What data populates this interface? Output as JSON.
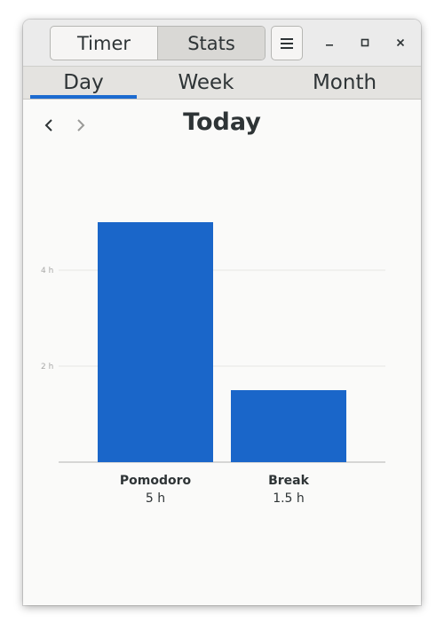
{
  "header": {
    "switcher": [
      {
        "label": "Timer",
        "active": false
      },
      {
        "label": "Stats",
        "active": true
      }
    ],
    "menu_icon": "hamburger-menu-icon",
    "window_controls": [
      "minimize-icon",
      "maximize-icon",
      "close-icon"
    ]
  },
  "tabs": [
    {
      "label": "Day",
      "active": true
    },
    {
      "label": "Week",
      "active": false
    },
    {
      "label": "Month",
      "active": false
    }
  ],
  "nav": {
    "title": "Today",
    "prev_icon": "chevron-left-icon",
    "next_icon": "chevron-right-icon",
    "next_enabled": false
  },
  "colors": {
    "accent": "#1c6bd0",
    "bar": "#1a66c9"
  },
  "chart_data": {
    "type": "bar",
    "categories": [
      "Pomodoro",
      "Break"
    ],
    "values": [
      5,
      1.5
    ],
    "value_labels": [
      "5 h",
      "1.5 h"
    ],
    "y_ticks": [
      {
        "value": 2,
        "label": "2 h"
      },
      {
        "value": 4,
        "label": "4 h"
      }
    ],
    "ylim": [
      0,
      5
    ],
    "grid": true
  }
}
